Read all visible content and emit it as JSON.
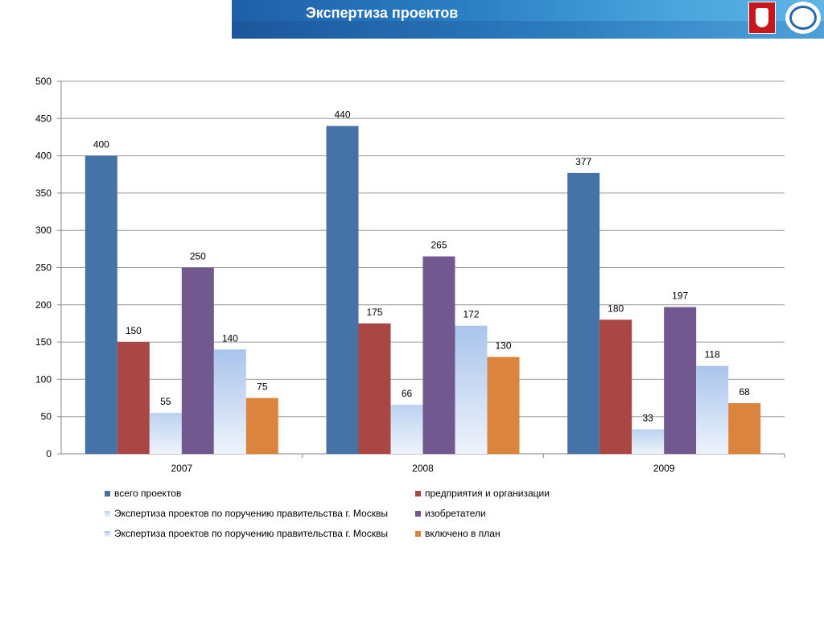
{
  "header": {
    "title": "Экспертиза проектов"
  },
  "chart_data": {
    "type": "bar",
    "categories": [
      "2007",
      "2008",
      "2009"
    ],
    "series": [
      {
        "name": "всего проектов",
        "values": [
          400,
          440,
          377
        ],
        "color": "#4572a7"
      },
      {
        "name": "предприятия и организации",
        "values": [
          150,
          175,
          180
        ],
        "color": "#aa4643"
      },
      {
        "name": "Экспертиза проектов по поручению правительства г. Москвы",
        "values": [
          55,
          66,
          33
        ],
        "color": "#bcd2f0"
      },
      {
        "name": "изобретатели",
        "values": [
          250,
          265,
          197
        ],
        "color": "#71588f"
      },
      {
        "name": "Экспертиза проектов по поручению правительства г. Москвы",
        "values": [
          140,
          172,
          118
        ],
        "color": "#a9c4ec"
      },
      {
        "name": "включено в план",
        "values": [
          75,
          130,
          68
        ],
        "color": "#db843d"
      }
    ],
    "ylim": [
      0,
      500
    ],
    "yticks": [
      0,
      50,
      100,
      150,
      200,
      250,
      300,
      350,
      400,
      450,
      500
    ],
    "grid": true,
    "legend_position": "bottom"
  }
}
